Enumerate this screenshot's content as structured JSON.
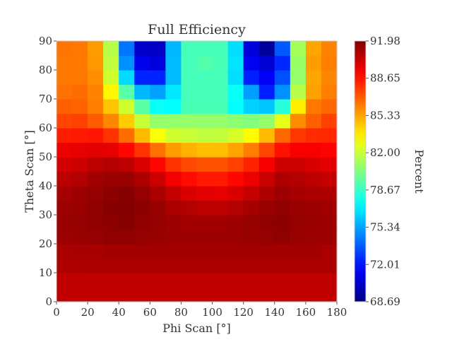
{
  "chart_data": {
    "type": "heatmap",
    "title": "Full Efficiency",
    "xlabel": "Phi Scan [°]",
    "ylabel": "Theta Scan [°]",
    "colorbar_label": "Percent",
    "xlim": [
      0,
      180
    ],
    "ylim": [
      0,
      90
    ],
    "x_ticks": [
      "0",
      "20",
      "40",
      "60",
      "80",
      "100",
      "120",
      "140",
      "160",
      "180"
    ],
    "y_ticks": [
      "0",
      "10",
      "20",
      "30",
      "40",
      "50",
      "60",
      "70",
      "80",
      "90"
    ],
    "colorbar_ticks": [
      "68.69",
      "72.01",
      "75.34",
      "78.67",
      "82.00",
      "85.33",
      "88.65",
      "91.98"
    ],
    "vmin": 68.69,
    "vmax": 91.98,
    "colormap": "jet",
    "x_edges": [
      0,
      10,
      20,
      30,
      40,
      50,
      60,
      70,
      80,
      90,
      100,
      110,
      120,
      130,
      140,
      150,
      160,
      170,
      180
    ],
    "y_edges": [
      0,
      5,
      10,
      15,
      20,
      25,
      30,
      35,
      40,
      45,
      50,
      55,
      60,
      65,
      70,
      75,
      80,
      85,
      90
    ],
    "values_bottom_to_top": [
      [
        90.5,
        90.5,
        90.5,
        90.5,
        90.5,
        90.5,
        90.5,
        90.5,
        90.5,
        90.5,
        90.5,
        90.5,
        90.5,
        90.5,
        90.5,
        90.5,
        90.5,
        90.5
      ],
      [
        90.5,
        90.5,
        90.5,
        90.5,
        90.5,
        90.5,
        90.5,
        90.5,
        90.5,
        90.5,
        90.5,
        90.5,
        90.5,
        90.5,
        90.5,
        90.5,
        90.5,
        90.5
      ],
      [
        90.9,
        90.9,
        91.0,
        91.0,
        91.0,
        91.0,
        91.0,
        91.0,
        91.0,
        91.0,
        91.0,
        91.0,
        91.0,
        91.0,
        91.0,
        91.0,
        91.0,
        91.0
      ],
      [
        91.0,
        91.1,
        91.1,
        91.2,
        91.2,
        91.2,
        91.2,
        91.2,
        91.2,
        91.2,
        91.2,
        91.2,
        91.2,
        91.2,
        91.2,
        91.2,
        91.2,
        91.0
      ],
      [
        91.3,
        91.4,
        91.5,
        91.6,
        91.6,
        91.5,
        91.4,
        91.3,
        91.3,
        91.3,
        91.3,
        91.3,
        91.4,
        91.5,
        91.6,
        91.4,
        91.3,
        91.3
      ],
      [
        91.4,
        91.5,
        91.6,
        91.7,
        91.8,
        91.6,
        91.5,
        91.3,
        91.2,
        91.2,
        91.2,
        91.3,
        91.5,
        91.6,
        91.7,
        91.5,
        91.4,
        91.3
      ],
      [
        91.3,
        91.4,
        91.6,
        91.8,
        91.9,
        91.7,
        91.4,
        91.0,
        90.8,
        90.6,
        90.6,
        90.8,
        91.1,
        91.4,
        91.6,
        91.4,
        91.3,
        91.2
      ],
      [
        91.1,
        91.3,
        91.5,
        91.7,
        91.8,
        91.5,
        91.0,
        90.4,
        89.9,
        89.7,
        89.6,
        89.9,
        90.4,
        90.9,
        91.3,
        91.1,
        91.0,
        90.9
      ],
      [
        90.6,
        90.8,
        91.2,
        91.4,
        91.4,
        90.9,
        90.2,
        89.3,
        88.8,
        88.5,
        88.5,
        88.9,
        89.5,
        90.3,
        90.9,
        90.8,
        90.6,
        90.4
      ],
      [
        90.1,
        90.2,
        90.6,
        90.8,
        90.6,
        89.9,
        88.9,
        87.9,
        87.4,
        87.2,
        87.2,
        87.6,
        88.3,
        89.2,
        90.2,
        90.2,
        89.9,
        89.7
      ],
      [
        89.5,
        89.6,
        89.7,
        89.6,
        88.9,
        87.9,
        86.5,
        85.5,
        85.0,
        84.7,
        84.7,
        85.3,
        86.2,
        87.5,
        88.7,
        89.2,
        89.2,
        89.0
      ],
      [
        88.4,
        88.5,
        88.6,
        87.9,
        86.6,
        84.8,
        83.1,
        82.2,
        82.0,
        81.8,
        81.9,
        82.3,
        83.3,
        84.8,
        86.7,
        87.8,
        88.1,
        88.2
      ],
      [
        87.5,
        87.6,
        87.0,
        86.0,
        84.4,
        82.0,
        80.8,
        80.8,
        80.8,
        80.8,
        80.8,
        80.6,
        80.4,
        80.8,
        82.7,
        85.9,
        86.9,
        87.6
      ],
      [
        86.9,
        86.8,
        86.2,
        84.6,
        82.2,
        79.5,
        77.6,
        77.5,
        79.1,
        79.1,
        79.1,
        77.5,
        76.4,
        76.1,
        78.3,
        83.6,
        86.3,
        86.7
      ],
      [
        86.5,
        86.6,
        86.1,
        83.4,
        79.4,
        75.8,
        75.3,
        76.9,
        79.0,
        79.0,
        79.0,
        77.6,
        75.2,
        72.3,
        74.9,
        81.6,
        85.4,
        86.2
      ],
      [
        86.3,
        86.3,
        85.8,
        82.2,
        76.6,
        72.4,
        72.4,
        75.9,
        79.0,
        79.0,
        79.0,
        76.7,
        72.3,
        71.4,
        73.4,
        80.8,
        85.3,
        86.0
      ],
      [
        86.3,
        86.3,
        85.6,
        81.8,
        74.9,
        71.2,
        70.8,
        75.9,
        79.0,
        79.3,
        79.1,
        76.8,
        71.3,
        70.6,
        72.5,
        80.9,
        85.5,
        86.2
      ],
      [
        86.4,
        86.3,
        85.5,
        81.6,
        74.3,
        70.4,
        70.3,
        75.8,
        79.0,
        79.0,
        79.0,
        76.7,
        70.8,
        69.3,
        73.6,
        81.2,
        85.3,
        86.1
      ]
    ]
  }
}
